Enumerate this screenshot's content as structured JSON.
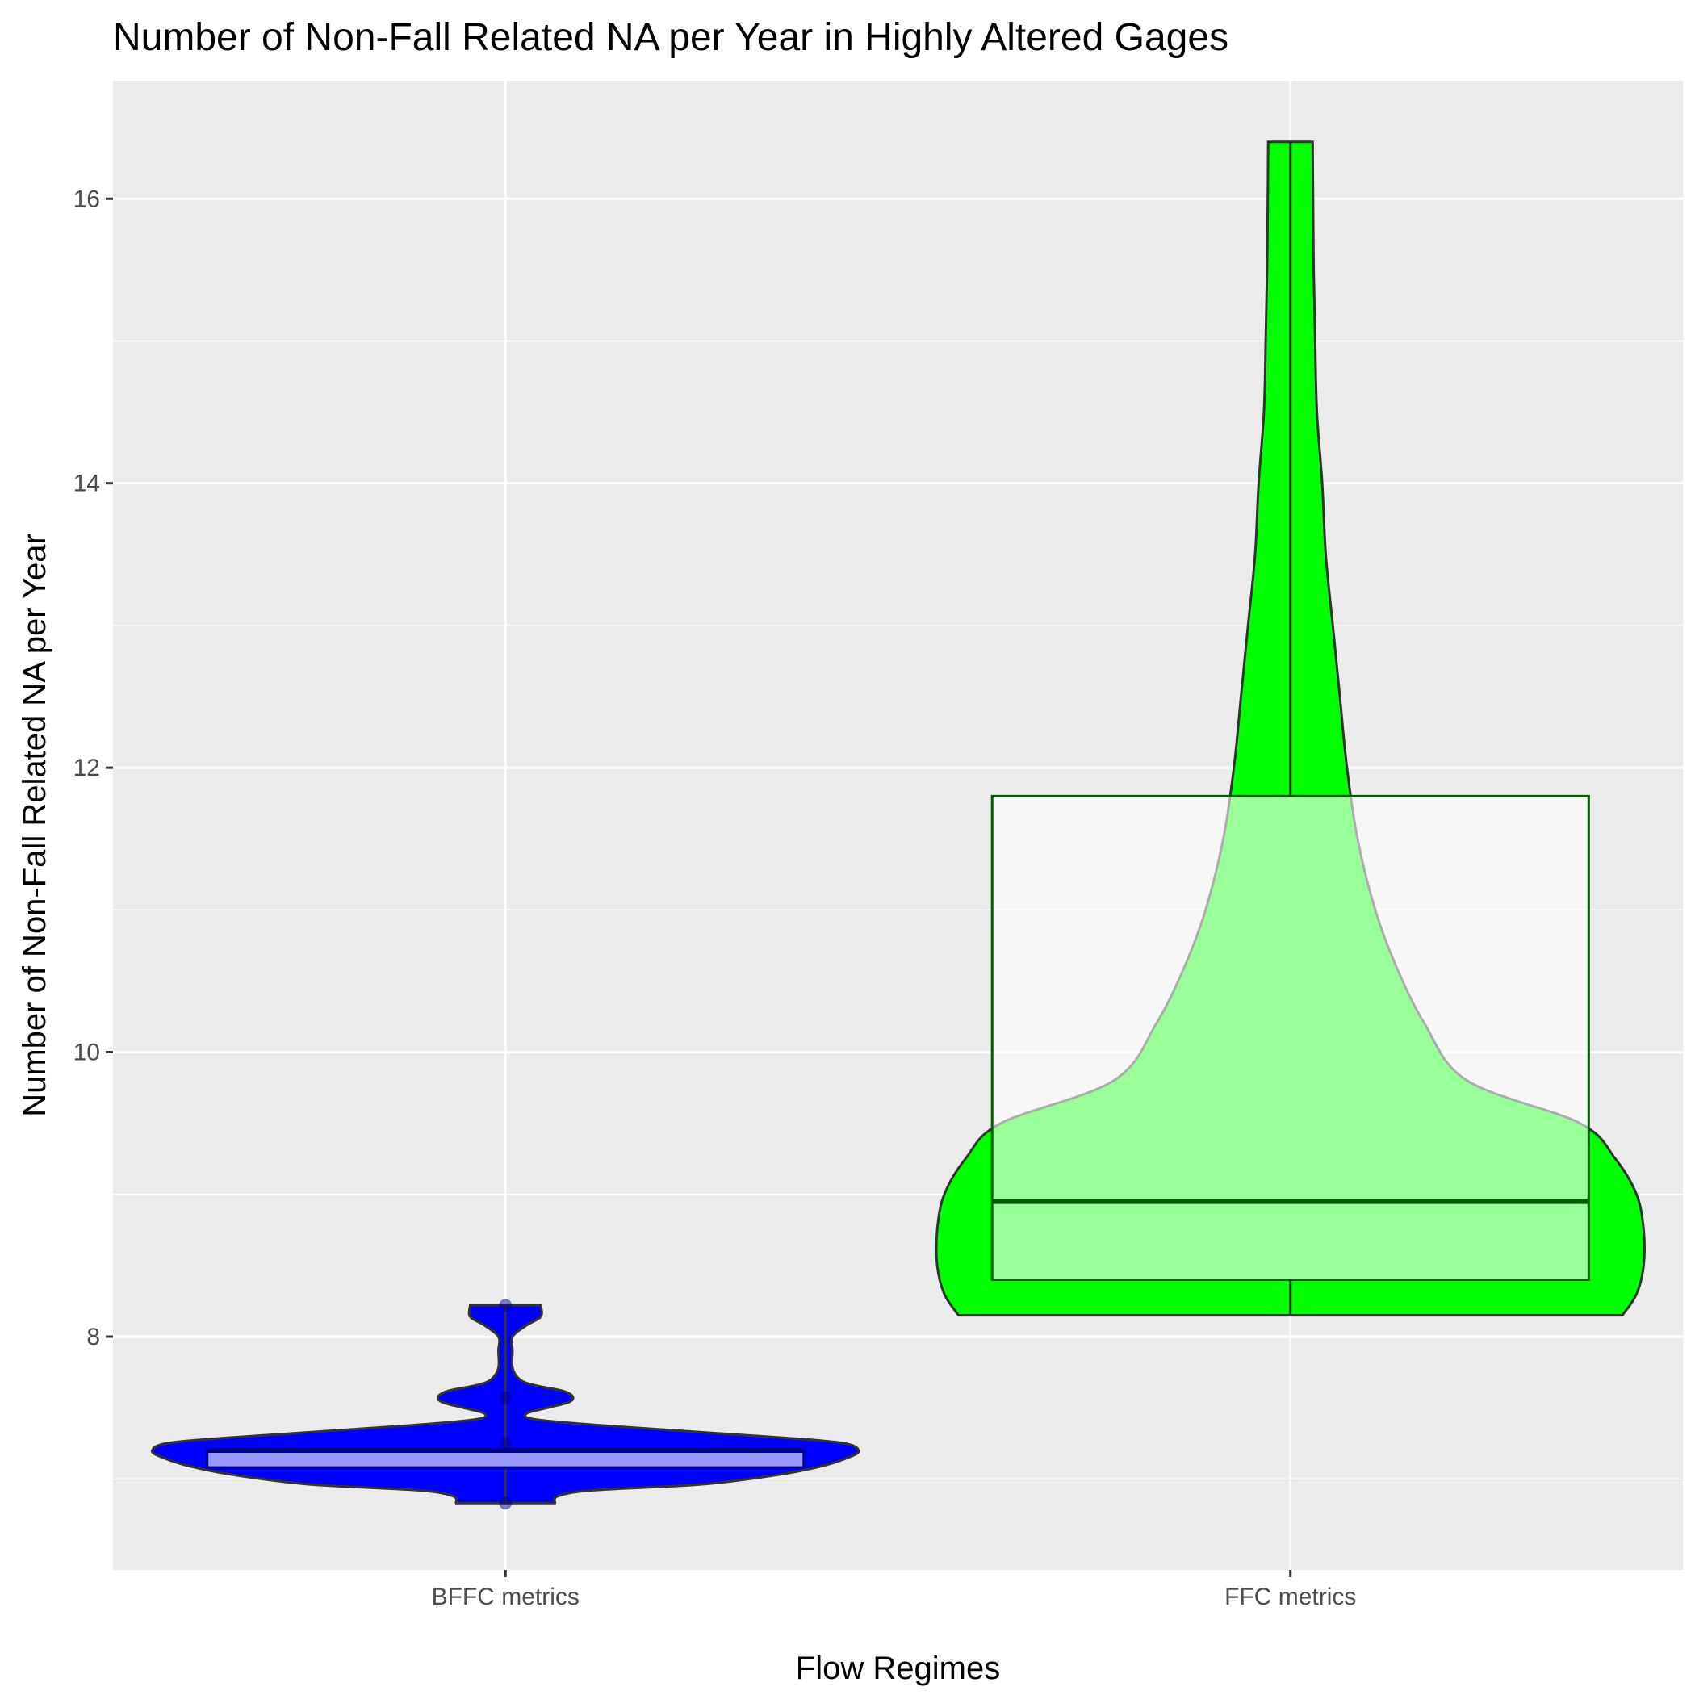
{
  "chart_data": {
    "type": "violin",
    "title": "Number of Non-Fall Related NA per Year in Highly Altered Gages",
    "xlabel": "Flow Regimes",
    "ylabel": "Number of Non-Fall Related NA per Year",
    "categories": [
      "BFFC metrics",
      "FFC metrics"
    ],
    "y_ticks": [
      8,
      10,
      12,
      14,
      16
    ],
    "ylim": [
      6.36,
      16.83
    ],
    "grid": true,
    "legend": "none",
    "groups": [
      {
        "category": "BFFC metrics",
        "fill": "#0000ff",
        "box_stroke": "#00008b",
        "points": [
          6.83,
          7.25,
          7.57,
          8.22
        ],
        "box": {
          "min": 6.83,
          "q1": 7.08,
          "median": 7.2,
          "q3": 7.2,
          "max": 8.22
        },
        "density": [
          [
            6.83,
            0.14
          ],
          [
            6.88,
            0.15
          ],
          [
            6.92,
            0.25
          ],
          [
            6.96,
            0.55
          ],
          [
            7.02,
            0.75
          ],
          [
            7.08,
            0.88
          ],
          [
            7.14,
            0.96
          ],
          [
            7.2,
            1.0
          ],
          [
            7.26,
            0.93
          ],
          [
            7.32,
            0.6
          ],
          [
            7.38,
            0.25
          ],
          [
            7.42,
            0.08
          ],
          [
            7.46,
            0.06
          ],
          [
            7.5,
            0.12
          ],
          [
            7.54,
            0.18
          ],
          [
            7.58,
            0.19
          ],
          [
            7.62,
            0.16
          ],
          [
            7.66,
            0.08
          ],
          [
            7.7,
            0.04
          ],
          [
            7.78,
            0.02
          ],
          [
            7.9,
            0.02
          ],
          [
            8.0,
            0.02
          ],
          [
            8.08,
            0.06
          ],
          [
            8.14,
            0.1
          ],
          [
            8.22,
            0.1
          ]
        ]
      },
      {
        "category": "FFC metrics",
        "fill": "#00ff00",
        "box_stroke": "#005c00",
        "points": [],
        "box": {
          "min": 8.15,
          "q1": 8.4,
          "median": 8.95,
          "q3": 11.8,
          "max": 16.4
        },
        "density": [
          [
            8.15,
            0.94
          ],
          [
            8.3,
            0.98
          ],
          [
            8.5,
            1.0
          ],
          [
            8.75,
            1.0
          ],
          [
            9.0,
            0.98
          ],
          [
            9.25,
            0.92
          ],
          [
            9.5,
            0.82
          ],
          [
            9.8,
            0.5
          ],
          [
            10.2,
            0.38
          ],
          [
            10.6,
            0.3
          ],
          [
            11.0,
            0.24
          ],
          [
            11.5,
            0.19
          ],
          [
            12.0,
            0.16
          ],
          [
            12.5,
            0.14
          ],
          [
            13.0,
            0.12
          ],
          [
            13.5,
            0.1
          ],
          [
            14.0,
            0.09
          ],
          [
            14.5,
            0.075
          ],
          [
            15.0,
            0.07
          ],
          [
            15.5,
            0.066
          ],
          [
            16.0,
            0.064
          ],
          [
            16.4,
            0.063
          ]
        ]
      }
    ]
  }
}
